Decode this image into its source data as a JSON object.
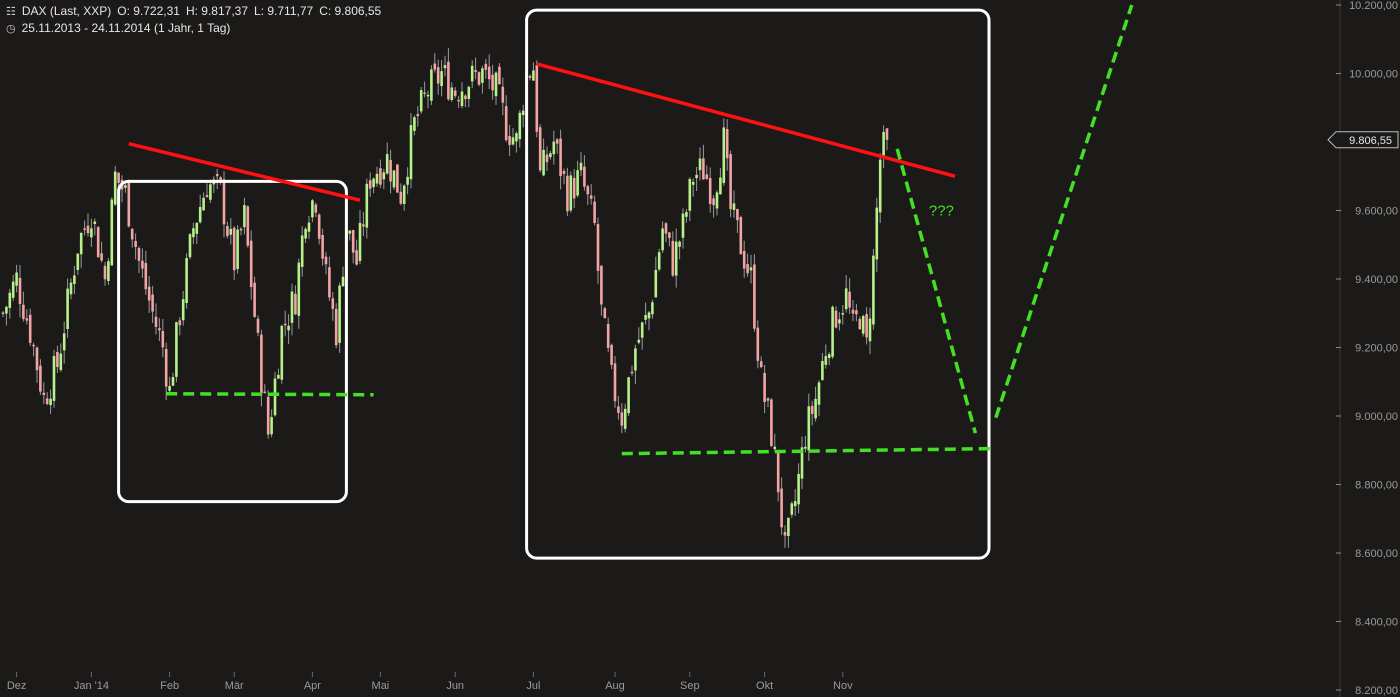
{
  "header": {
    "symbol": "DAX (Last, XXP)",
    "open": "O: 9.722,31",
    "high": "H: 9.817,37",
    "low": "L: 9.711,77",
    "close": "C: 9.806,55",
    "range": "25.11.2013 - 24.11.2014 (1 Jahr, 1 Tag)",
    "chart_icon": "candlestick-icon",
    "clock_icon": "clock-icon"
  },
  "colors": {
    "background": "#1c1a19",
    "up_candle": "#b6f28a",
    "down_candle": "#f2a3a3",
    "wick": "#9a9a9a",
    "trend_red": "#ff1111",
    "support_green": "#44e026",
    "box": "#ffffff"
  },
  "chart_data": {
    "type": "candlestick",
    "instrument": "DAX (Last, XXP)",
    "period": "25.11.2013 - 24.11.2014 (1 Jahr, 1 Tag)",
    "ylim": [
      8200,
      10200
    ],
    "y_ticks": [
      {
        "value": 10200,
        "label": "10.200,00"
      },
      {
        "value": 10000,
        "label": "10.000,00"
      },
      {
        "value": 9800,
        "label": ""
      },
      {
        "value": 9600,
        "label": "9.600,00"
      },
      {
        "value": 9400,
        "label": "9.400,00"
      },
      {
        "value": 9200,
        "label": "9.200,00"
      },
      {
        "value": 9000,
        "label": "9.000,00"
      },
      {
        "value": 8800,
        "label": "8.800,00"
      },
      {
        "value": 8600,
        "label": "8.600,00"
      },
      {
        "value": 8400,
        "label": "8.400,00"
      },
      {
        "value": 8200,
        "label": "8.200,00"
      }
    ],
    "x_ticks": [
      {
        "day": 4,
        "label": "Dez"
      },
      {
        "day": 26,
        "label": "Jan '14"
      },
      {
        "day": 49,
        "label": "Feb"
      },
      {
        "day": 68,
        "label": "Mär"
      },
      {
        "day": 91,
        "label": "Apr"
      },
      {
        "day": 111,
        "label": "Mai"
      },
      {
        "day": 133,
        "label": "Jun"
      },
      {
        "day": 156,
        "label": "Jul"
      },
      {
        "day": 180,
        "label": "Aug"
      },
      {
        "day": 202,
        "label": "Sep"
      },
      {
        "day": 224,
        "label": "Okt"
      },
      {
        "day": 247,
        "label": "Nov"
      }
    ],
    "last_price": {
      "value": 9806.55,
      "label": "9.806,55"
    },
    "close_path": [
      [
        0,
        9300
      ],
      [
        4,
        9400
      ],
      [
        8,
        9250
      ],
      [
        12,
        9050
      ],
      [
        16,
        9150
      ],
      [
        22,
        9500
      ],
      [
        26,
        9600
      ],
      [
        30,
        9400
      ],
      [
        33,
        9700
      ],
      [
        36,
        9650
      ],
      [
        40,
        9450
      ],
      [
        44,
        9300
      ],
      [
        47,
        9200
      ],
      [
        49,
        9070
      ],
      [
        52,
        9300
      ],
      [
        56,
        9550
      ],
      [
        60,
        9680
      ],
      [
        64,
        9650
      ],
      [
        68,
        9450
      ],
      [
        71,
        9580
      ],
      [
        75,
        9200
      ],
      [
        78,
        8950
      ],
      [
        82,
        9250
      ],
      [
        86,
        9350
      ],
      [
        89,
        9600
      ],
      [
        92,
        9640
      ],
      [
        95,
        9400
      ],
      [
        98,
        9250
      ],
      [
        101,
        9550
      ],
      [
        104,
        9450
      ],
      [
        108,
        9700
      ],
      [
        113,
        9750
      ],
      [
        117,
        9650
      ],
      [
        121,
        9850
      ],
      [
        125,
        9950
      ],
      [
        129,
        10000
      ],
      [
        133,
        9950
      ],
      [
        137,
        9980
      ],
      [
        141,
        10000
      ],
      [
        145,
        9950
      ],
      [
        148,
        9850
      ],
      [
        151,
        9800
      ],
      [
        154,
        10000
      ],
      [
        156,
        10020
      ],
      [
        158,
        9700
      ],
      [
        162,
        9800
      ],
      [
        166,
        9650
      ],
      [
        170,
        9700
      ],
      [
        174,
        9550
      ],
      [
        176,
        9300
      ],
      [
        179,
        9100
      ],
      [
        182,
        9000
      ],
      [
        186,
        9200
      ],
      [
        190,
        9300
      ],
      [
        194,
        9550
      ],
      [
        197,
        9450
      ],
      [
        200,
        9550
      ],
      [
        203,
        9700
      ],
      [
        206,
        9720
      ],
      [
        209,
        9650
      ],
      [
        212,
        9800
      ],
      [
        214,
        9600
      ],
      [
        217,
        9500
      ],
      [
        220,
        9400
      ],
      [
        223,
        9100
      ],
      [
        226,
        8950
      ],
      [
        228,
        8800
      ],
      [
        230,
        8600
      ],
      [
        233,
        8750
      ],
      [
        236,
        8950
      ],
      [
        239,
        9050
      ],
      [
        242,
        9200
      ],
      [
        245,
        9300
      ],
      [
        248,
        9350
      ],
      [
        250,
        9250
      ],
      [
        252,
        9300
      ],
      [
        254,
        9200
      ],
      [
        256,
        9450
      ],
      [
        258,
        9750
      ],
      [
        260,
        9806
      ]
    ],
    "overlays": [
      {
        "type": "trendline",
        "color": "red",
        "from": {
          "day": 37,
          "value": 9795
        },
        "to": {
          "day": 105,
          "value": 9630
        }
      },
      {
        "type": "trendline",
        "color": "red",
        "from": {
          "day": 157,
          "value": 10028
        },
        "to": {
          "day": 280,
          "value": 9700
        }
      },
      {
        "type": "support",
        "color": "green",
        "style": "dashed",
        "from": {
          "day": 48,
          "value": 9065
        },
        "to": {
          "day": 109,
          "value": 9062
        }
      },
      {
        "type": "support",
        "color": "green",
        "style": "dashed",
        "from": {
          "day": 182,
          "value": 8890
        },
        "to": {
          "day": 292,
          "value": 8905
        }
      },
      {
        "type": "projection",
        "color": "green",
        "style": "dashed",
        "from": {
          "day": 263,
          "value": 9780
        },
        "to": {
          "day": 286,
          "value": 8950
        }
      },
      {
        "type": "projection",
        "color": "green",
        "style": "dashed",
        "from": {
          "day": 292,
          "value": 8995
        },
        "to": {
          "day": 332,
          "value": 10200
        }
      }
    ],
    "highlight_boxes": [
      {
        "from_day": 34,
        "to_day": 101,
        "top": 9685,
        "bottom": 8750
      },
      {
        "from_day": 154,
        "to_day": 290,
        "top": 10185,
        "bottom": 8585
      }
    ],
    "annotation": {
      "text": "???",
      "day": 276,
      "value": 9585
    }
  }
}
